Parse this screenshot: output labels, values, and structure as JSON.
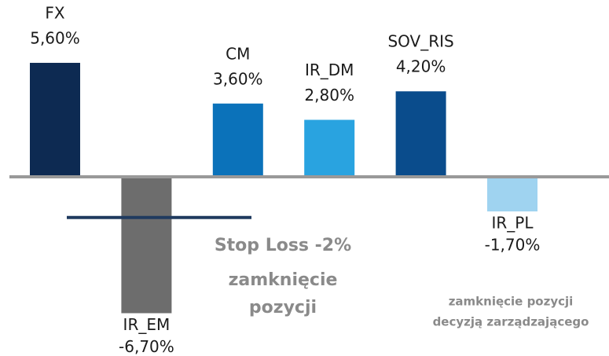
{
  "chart_data": {
    "type": "bar",
    "categories": [
      "FX",
      "IR_EM",
      "CM",
      "IR_DM",
      "SOV_RIS",
      "IR_PL"
    ],
    "values": [
      5.6,
      -6.7,
      3.6,
      2.8,
      4.2,
      -1.7
    ],
    "value_labels": [
      "5,60%",
      "-6,70%",
      "3,60%",
      "2,80%",
      "4,20%",
      "-1,70%"
    ],
    "colors": [
      "#0d2a52",
      "#6d6d6d",
      "#0b72ba",
      "#29a3e0",
      "#0a4c8c",
      "#9fd3f0"
    ],
    "stop_loss": {
      "value": -2,
      "label": "Stop Loss -2%",
      "color": "#1f3a5f"
    },
    "annotations": [
      {
        "lines": [
          "zamknięcie",
          "pozycji"
        ]
      },
      {
        "lines": [
          "zamknięcie pozycji",
          "decyzją zarządzającego"
        ]
      }
    ]
  }
}
